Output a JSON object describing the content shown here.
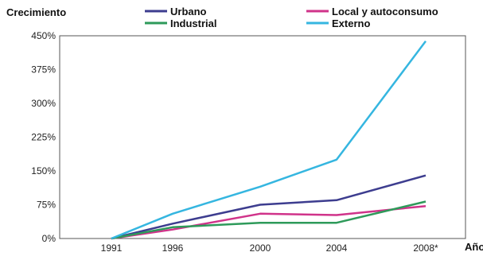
{
  "chart_data": {
    "type": "line",
    "ylabel": "Crecimiento",
    "xlabel": "Año",
    "x": [
      "1991",
      "1996",
      "2000",
      "2004",
      "2008*"
    ],
    "y_ticks": [
      "0%",
      "75%",
      "150%",
      "225%",
      "300%",
      "375%",
      "450%"
    ],
    "ylim": [
      0,
      450
    ],
    "grid": false,
    "legend_position": "top",
    "series": [
      {
        "name": "Urbano",
        "color": "#3d3d8f",
        "values": [
          0,
          33,
          75,
          85,
          140
        ]
      },
      {
        "name": "Local y autoconsumo",
        "color": "#d0338a",
        "values": [
          0,
          20,
          55,
          52,
          72
        ]
      },
      {
        "name": "Industrial",
        "color": "#2e9a5a",
        "values": [
          0,
          25,
          35,
          35,
          82
        ]
      },
      {
        "name": "Externo",
        "color": "#35b6e0",
        "values": [
          0,
          55,
          115,
          175,
          438
        ]
      }
    ]
  }
}
